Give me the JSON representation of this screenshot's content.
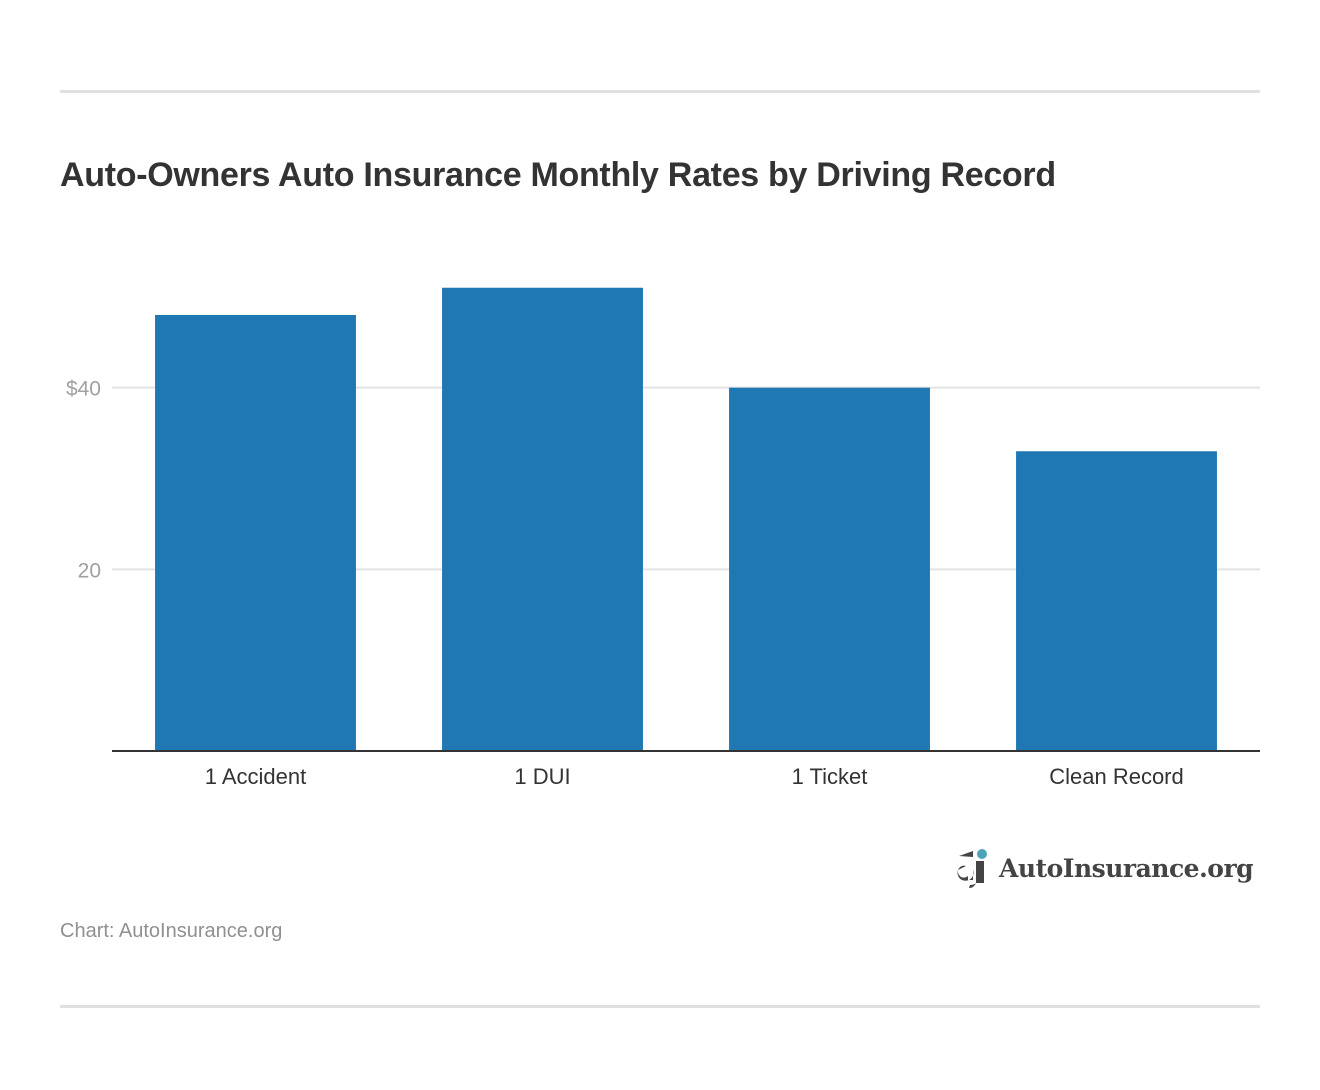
{
  "chart_data": {
    "type": "bar",
    "title": "Auto-Owners Auto Insurance Monthly Rates by Driving Record",
    "categories": [
      "1 Accident",
      "1 DUI",
      "1 Ticket",
      "Clean Record"
    ],
    "values": [
      48,
      51,
      40,
      33
    ],
    "xlabel": "",
    "ylabel": "",
    "ylim": [
      0,
      60
    ],
    "yticks": [
      20,
      40
    ],
    "ytick_labels": [
      "20",
      "$40"
    ],
    "grid": true,
    "bar_color": "#1f77b4"
  },
  "source": "Chart: AutoInsurance.org",
  "logo": {
    "text": "AutoInsurance.org",
    "accent": "#4fa3b8"
  }
}
